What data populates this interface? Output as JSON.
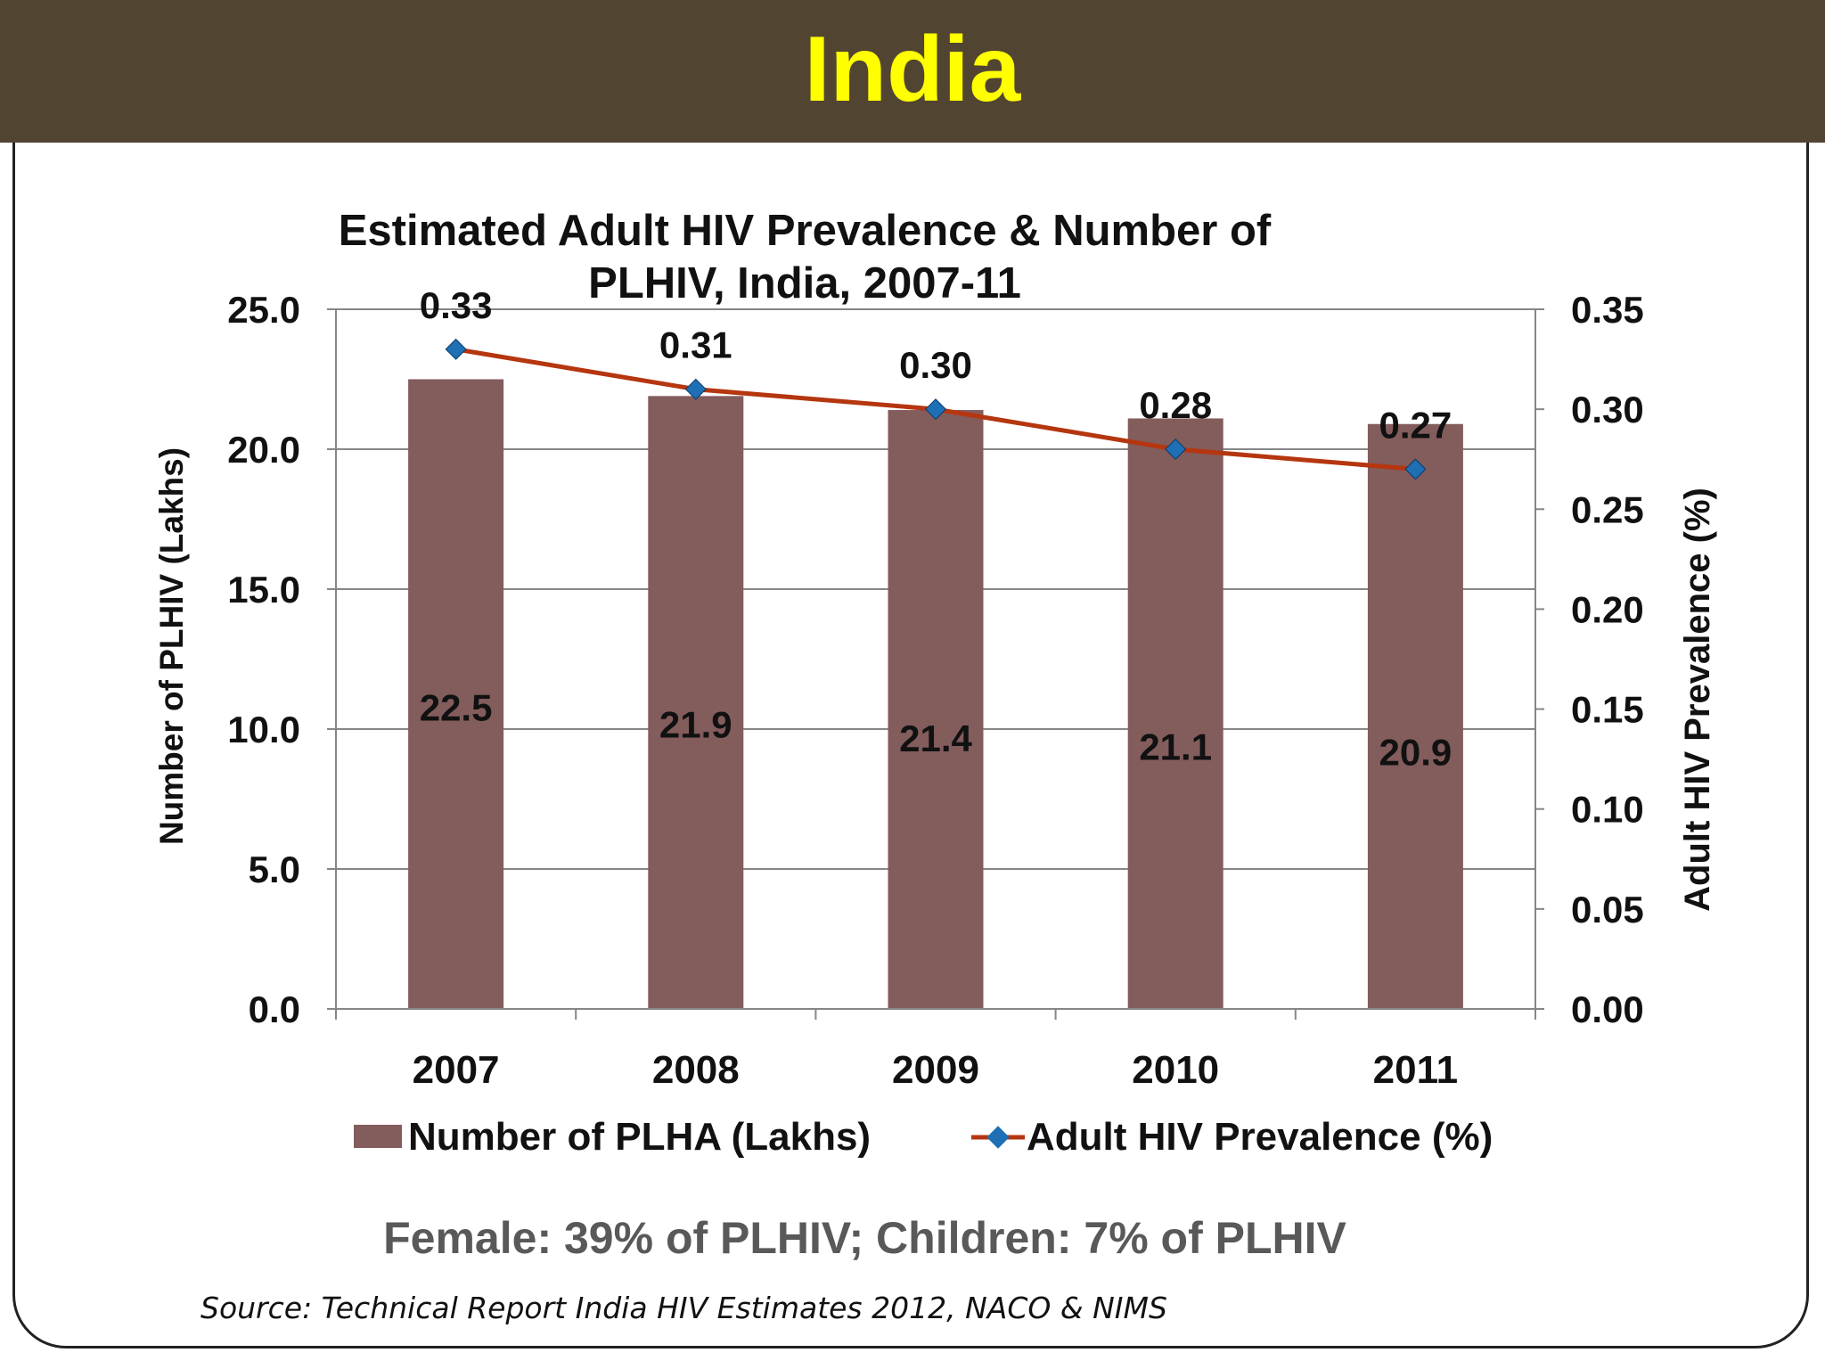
{
  "slide": {
    "title": "India",
    "footnote": "Female: 39% of PLHIV; Children: 7% of PLHIV",
    "source": "Source: Technical Report India HIV Estimates 2012, NACO & NIMS"
  },
  "chart_data": {
    "type": "bar",
    "title": "Estimated Adult HIV Prevalence & Number of PLHIV, India, 2007-11",
    "title_lines": [
      "Estimated Adult HIV Prevalence & Number of",
      "PLHIV, India, 2007-11"
    ],
    "categories": [
      "2007",
      "2008",
      "2009",
      "2010",
      "2011"
    ],
    "ylabel": "Number of PLHIV (Lakhs)",
    "y2label": "Adult HIV Prevalence (%)",
    "ylim": [
      0,
      25
    ],
    "y2lim": [
      0,
      0.35
    ],
    "yticks": [
      "0.0",
      "5.0",
      "10.0",
      "15.0",
      "20.0",
      "25.0"
    ],
    "y2ticks": [
      "0.00",
      "0.05",
      "0.10",
      "0.15",
      "0.20",
      "0.25",
      "0.30",
      "0.35"
    ],
    "grid": true,
    "legend_position": "bottom",
    "series": [
      {
        "name": "Number of PLHA (Lakhs)",
        "type": "bar",
        "axis": "left",
        "color": "#835c5c",
        "values": [
          22.5,
          21.9,
          21.4,
          21.1,
          20.9
        ],
        "labels": [
          "22.5",
          "21.9",
          "21.4",
          "21.1",
          "20.9"
        ]
      },
      {
        "name": "Adult HIV Prevalence (%)",
        "type": "line",
        "axis": "right",
        "color": "#b5360f",
        "marker_color": "#1f6fb4",
        "values": [
          0.33,
          0.31,
          0.3,
          0.28,
          0.27
        ],
        "labels": [
          "0.33",
          "0.31",
          "0.30",
          "0.28",
          "0.27"
        ]
      }
    ]
  }
}
